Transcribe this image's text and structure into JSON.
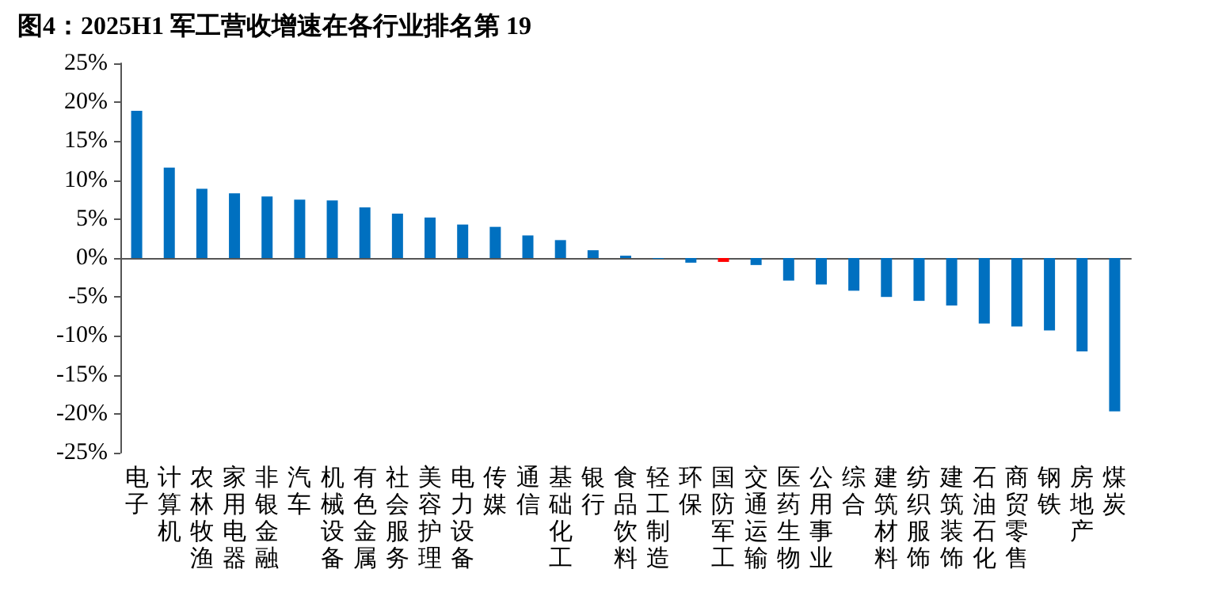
{
  "chart_data": {
    "type": "bar",
    "title": "图4：2025H1 军工营收增速在各行业排名第 19",
    "categories": [
      "电子",
      "计算机",
      "农林牧渔",
      "家用电器",
      "非银金融",
      "汽车",
      "机械设备",
      "有色金属",
      "社会服务",
      "美容护理",
      "电力设备",
      "传媒",
      "通信",
      "基础化工",
      "银行",
      "食品饮料",
      "轻工制造",
      "环保",
      "国防军工",
      "交通运输",
      "医药生物",
      "公用事业",
      "综合",
      "建筑材料",
      "纺织服饰",
      "建筑装饰",
      "石油石化",
      "商贸零售",
      "钢铁",
      "房地产",
      "煤炭"
    ],
    "values": [
      18.9,
      11.6,
      8.9,
      8.3,
      7.9,
      7.5,
      7.4,
      6.5,
      5.7,
      5.2,
      4.3,
      4.0,
      2.9,
      2.3,
      1.0,
      0.3,
      -0.1,
      -0.6,
      -0.5,
      -0.9,
      -2.9,
      -3.4,
      -4.2,
      -5.0,
      -5.5,
      -6.1,
      -8.4,
      -8.8,
      -9.3,
      -12.0,
      -19.7
    ],
    "colors": [
      "#0070c0",
      "#0070c0",
      "#0070c0",
      "#0070c0",
      "#0070c0",
      "#0070c0",
      "#0070c0",
      "#0070c0",
      "#0070c0",
      "#0070c0",
      "#0070c0",
      "#0070c0",
      "#0070c0",
      "#0070c0",
      "#0070c0",
      "#0070c0",
      "#0070c0",
      "#0070c0",
      "#ff0000",
      "#0070c0",
      "#0070c0",
      "#0070c0",
      "#0070c0",
      "#0070c0",
      "#0070c0",
      "#0070c0",
      "#0070c0",
      "#0070c0",
      "#0070c0",
      "#0070c0",
      "#0070c0"
    ],
    "ylim": [
      -25,
      25
    ],
    "yticks": [
      {
        "value": -25,
        "label": "-25%"
      },
      {
        "value": -20,
        "label": "-20%"
      },
      {
        "value": -15,
        "label": "-15%"
      },
      {
        "value": -10,
        "label": "-10%"
      },
      {
        "value": -5,
        "label": "-5%"
      },
      {
        "value": 0,
        "label": "0%"
      },
      {
        "value": 5,
        "label": "5%"
      },
      {
        "value": 10,
        "label": "10%"
      },
      {
        "value": 15,
        "label": "15%"
      },
      {
        "value": 20,
        "label": "20%"
      },
      {
        "value": 25,
        "label": "25%"
      }
    ]
  }
}
